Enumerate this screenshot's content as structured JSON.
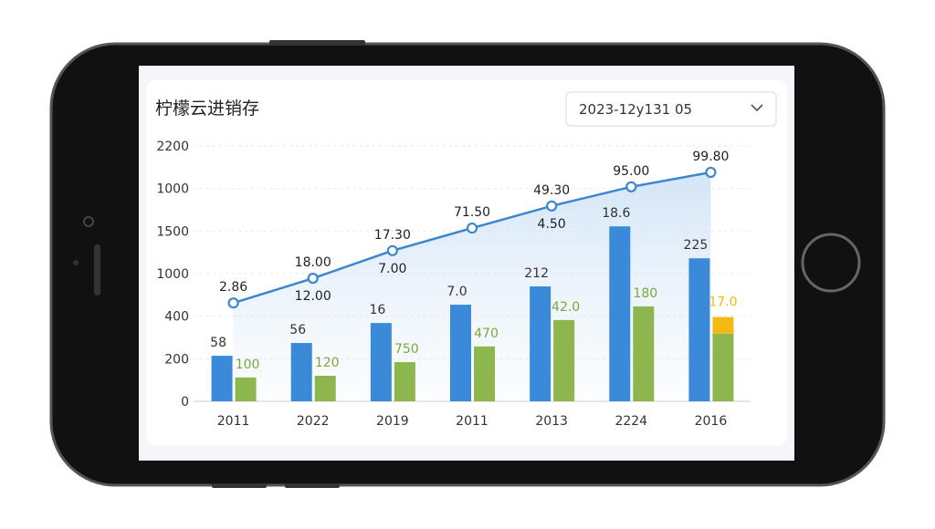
{
  "header": {
    "title": "柠檬云进销存",
    "date_select": "2023-12y131 05"
  },
  "chart_data": {
    "type": "combo",
    "ylim": [
      0,
      6
    ],
    "y_labels": [
      "2200",
      "1000",
      "1500",
      "1000",
      "400",
      "200",
      "0"
    ],
    "categories": [
      "2011",
      "2022",
      "2019",
      "2011",
      "2013",
      "2224",
      "2016"
    ],
    "bars": [
      {
        "color": "#3b8ad9",
        "values": [
          1.07,
          1.37,
          1.84,
          2.27,
          2.7,
          4.11,
          3.36
        ],
        "labels": [
          "58",
          "56",
          "16",
          "7.0",
          "212",
          "18.6",
          "225"
        ]
      },
      {
        "color": "#8db64e",
        "values": [
          0.56,
          0.6,
          0.92,
          1.29,
          1.91,
          2.23,
          1.59
        ],
        "labels": [
          "100",
          "120",
          "750",
          "470",
          "42.0",
          "180",
          null
        ]
      }
    ],
    "stack": {
      "color": "#f5b916",
      "values": [
        null,
        null,
        null,
        null,
        null,
        null,
        0.39
      ],
      "labels": [
        null,
        null,
        null,
        null,
        null,
        null,
        "17.0"
      ]
    },
    "line": {
      "color": "#3a86d0",
      "values": [
        2.31,
        2.89,
        3.54,
        4.07,
        4.59,
        5.04,
        5.38
      ],
      "labels": [
        "2.86",
        "18.00",
        "17.30",
        "71.50",
        "49.30",
        "95.00",
        "99.80"
      ],
      "sub_labels": [
        null,
        "12.00",
        "7.00",
        null,
        "4.50",
        null,
        null
      ]
    }
  }
}
